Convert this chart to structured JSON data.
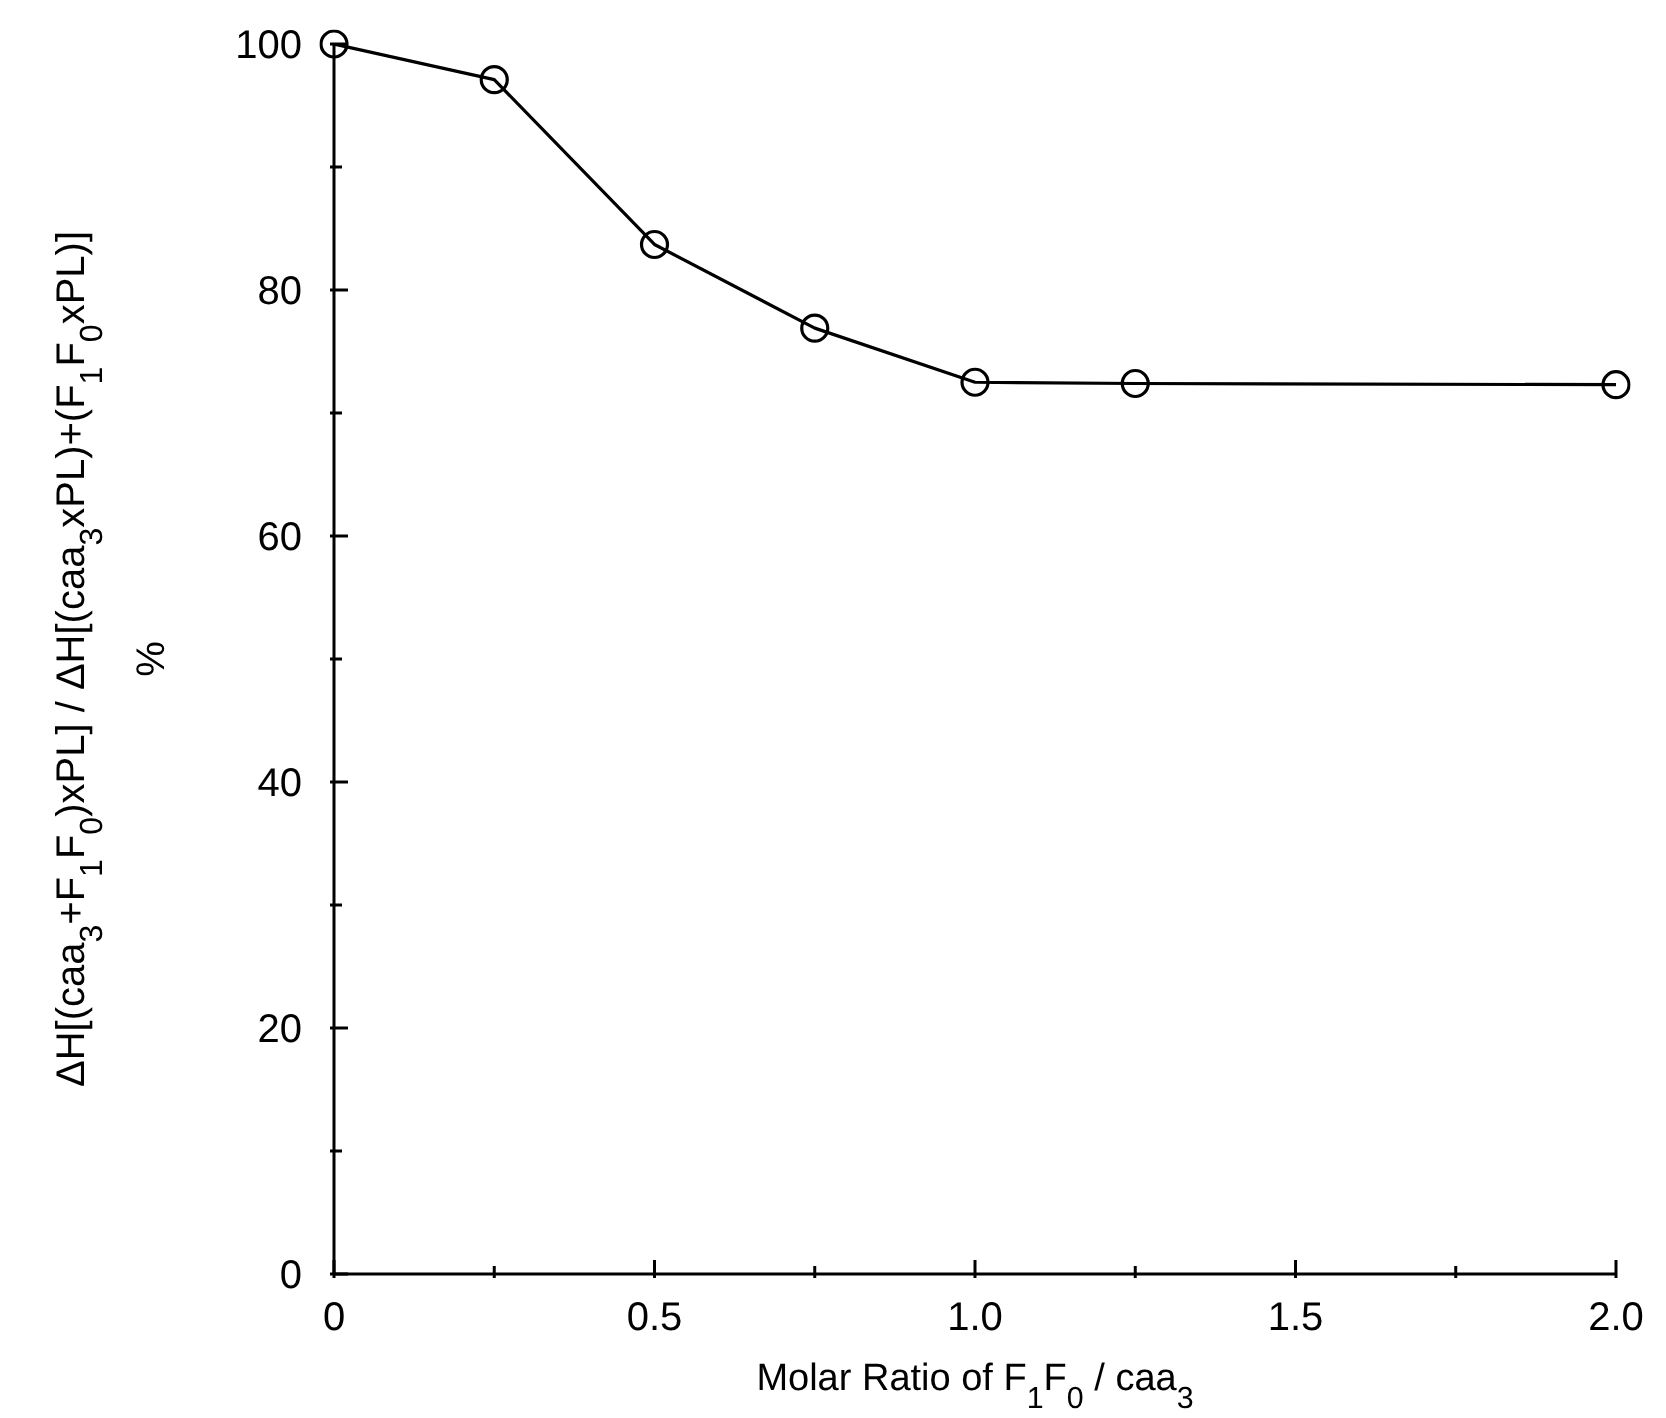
{
  "chart_data": {
    "type": "line",
    "xlabel": "Molar Ratio of F$_{1}$F$_{0}$ / caa$_{3}$",
    "ylabel": "ΔH[(caa$_{3}$+F$_{1}$F$_{0}$)xPL] / ΔH[(caa$_{3}$xPL)+(F$_{1}$F$_{0}$xPL)]\n%",
    "x": [
      0,
      0.25,
      0.5,
      0.75,
      1.0,
      1.25,
      2.0
    ],
    "series": [
      {
        "color": "#000000",
        "values": [
          100,
          97.1,
          83.7,
          76.9,
          72.5,
          72.4,
          72.3
        ]
      }
    ],
    "xlim": [
      0,
      2
    ],
    "xticks": [
      0,
      {
        "value": 0.25,
        "label": null
      },
      0.5,
      {
        "value": 0.75,
        "label": null
      },
      {
        "value": 1,
        "label": "1.0"
      },
      {
        "value": 1.25,
        "label": null
      },
      1.5,
      {
        "value": 1.75,
        "label": null
      },
      {
        "value": 2,
        "label": "2.0"
      }
    ],
    "ylim": [
      0,
      100
    ],
    "yticks": [
      0,
      {
        "value": 10,
        "label": null
      },
      20,
      {
        "value": 30,
        "label": null
      },
      40,
      {
        "value": 50,
        "label": null
      },
      60,
      {
        "value": 70,
        "label": null
      },
      80,
      {
        "value": 90,
        "label": null
      },
      100
    ],
    "marker": "circle",
    "line_style": "solid",
    "grid": false,
    "legend": false
  }
}
